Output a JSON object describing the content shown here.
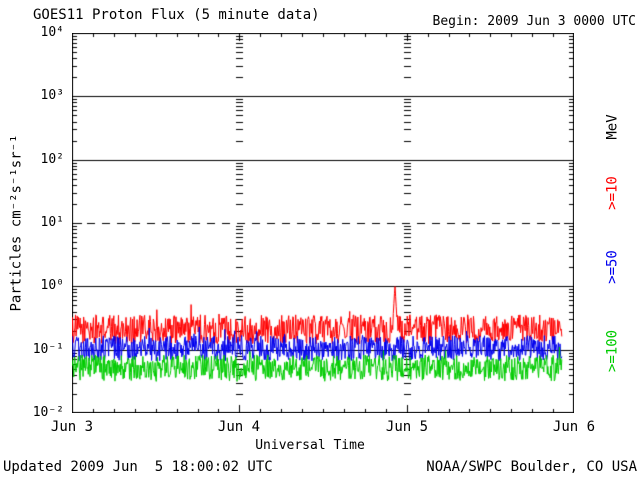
{
  "chart_data": {
    "type": "line",
    "title": "GOES11 Proton Flux (5 minute data)",
    "begin_label": "Begin: 2009 Jun 3 0000 UTC",
    "xlabel": "Universal Time",
    "ylabel": "Particles cm⁻²s⁻¹sr⁻¹",
    "unit_label": "MeV",
    "x_tick_labels": [
      "Jun 3",
      "Jun 4",
      "Jun 5",
      "Jun 6"
    ],
    "x_range_days": [
      0,
      3
    ],
    "x_minor_tick_hours": 3,
    "ylim": [
      0.01,
      10000
    ],
    "yscale": "log",
    "ytick_labels": [
      "10⁴",
      "10³",
      "10²",
      "10¹",
      "10⁰",
      "10⁻¹",
      "10⁻²"
    ],
    "hlines": [
      {
        "value": 1000,
        "style": "solid"
      },
      {
        "value": 100,
        "style": "solid"
      },
      {
        "value": 10,
        "style": "dashed"
      },
      {
        "value": 1,
        "style": "solid"
      },
      {
        "value": 0.1,
        "style": "solid"
      }
    ],
    "day_boundary_dash_columns_days": [
      1,
      2
    ],
    "cadence_minutes": 5,
    "data_end_day": 2.93,
    "legend_position": "right",
    "grid": "horizontal-decades",
    "axis_color": "#000000",
    "series": [
      {
        "name": ">=10",
        "color": "#ff0000",
        "baseline_flux": 0.21,
        "log10_noise": 0.23,
        "spike": {
          "day": 1.93,
          "peak_flux": 1.05
        }
      },
      {
        "name": ">=50",
        "color": "#0000ee",
        "baseline_flux": 0.105,
        "log10_noise": 0.2
      },
      {
        "name": ">=100",
        "color": "#00cc00",
        "baseline_flux": 0.051,
        "log10_noise": 0.21
      }
    ]
  },
  "footer": {
    "updated": "Updated 2009 Jun  5 18:00:02 UTC",
    "organization": "NOAA/SWPC Boulder, CO USA"
  }
}
